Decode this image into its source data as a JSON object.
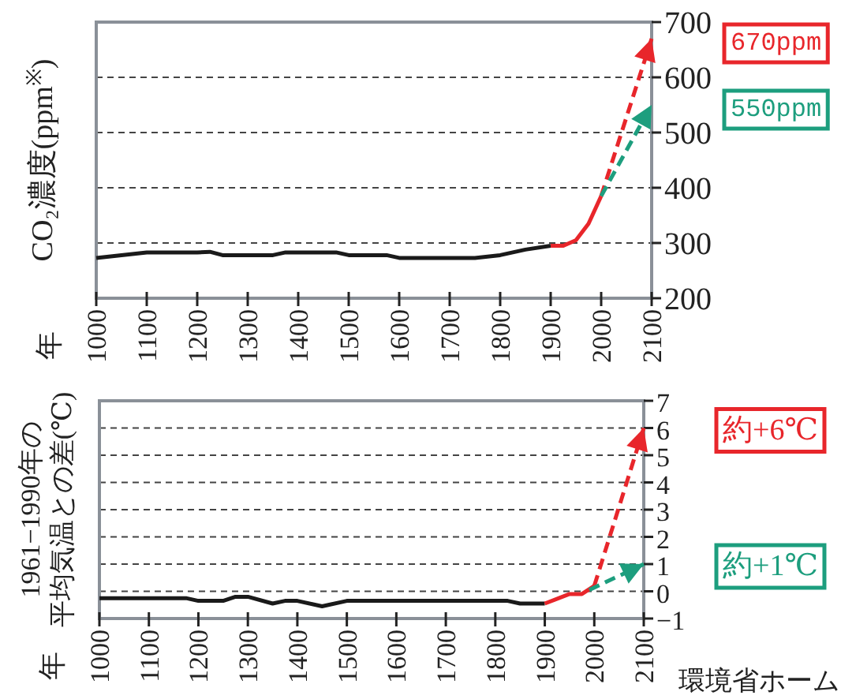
{
  "chart_data": [
    {
      "type": "line",
      "ylabel": "CO₂濃度(ppm$^{※}$)",
      "xlim": [
        1000,
        2100
      ],
      "xticks": [
        1000,
        1100,
        1200,
        1300,
        1400,
        1500,
        1600,
        1700,
        1800,
        1900,
        2000,
        2100
      ],
      "ylim": [
        200,
        700
      ],
      "yticks": [
        200,
        300,
        400,
        500,
        600,
        700
      ],
      "grid": "y",
      "series": [
        {
          "color": "#1a1a1a",
          "x": [
            1000,
            1050,
            1100,
            1150,
            1200,
            1225,
            1250,
            1300,
            1350,
            1375,
            1400,
            1475,
            1500,
            1575,
            1600,
            1700,
            1750,
            1800,
            1850,
            1900
          ],
          "values": [
            273,
            278,
            283,
            283,
            283,
            284,
            278,
            278,
            278,
            283,
            283,
            283,
            278,
            278,
            273,
            273,
            273,
            278,
            288,
            295
          ]
        },
        {
          "color": "#e8262b",
          "x": [
            1900,
            1925,
            1950,
            1975,
            2000
          ],
          "values": [
            295,
            295,
            305,
            335,
            385
          ]
        },
        {
          "color": "#e8262b",
          "line_style": "dashed",
          "x": [
            2000,
            2100
          ],
          "values": [
            385,
            670
          ]
        },
        {
          "color": "#1d9e7e",
          "line_style": "dashed",
          "x": [
            2000,
            2100
          ],
          "values": [
            385,
            550
          ]
        }
      ],
      "annotations": [
        "670ppm",
        "550ppm",
        "年"
      ]
    },
    {
      "type": "line",
      "ylabel": "1961−1990年の平均気温との差(℃)",
      "xlim": [
        1000,
        2100
      ],
      "xticks": [
        1000,
        1100,
        1200,
        1300,
        1400,
        1500,
        1600,
        1700,
        1800,
        1900,
        2000,
        2100
      ],
      "ylim": [
        -1,
        7
      ],
      "yticks": [
        {
          "value": -1,
          "label": "−1"
        },
        0,
        1,
        2,
        3,
        4,
        5,
        6,
        7
      ],
      "grid": "y",
      "series": [
        {
          "color": "#1a1a1a",
          "x": [
            1000,
            1175,
            1200,
            1250,
            1275,
            1300,
            1350,
            1375,
            1400,
            1450,
            1500,
            1825,
            1850,
            1900
          ],
          "values": [
            -0.25,
            -0.25,
            -0.35,
            -0.35,
            -0.2,
            -0.2,
            -0.45,
            -0.35,
            -0.35,
            -0.55,
            -0.35,
            -0.35,
            -0.45,
            -0.45
          ]
        },
        {
          "color": "#e8262b",
          "x": [
            1900,
            1950,
            1975,
            2000
          ],
          "values": [
            -0.45,
            -0.1,
            -0.1,
            0.2
          ]
        },
        {
          "color": "#e8262b",
          "line_style": "dashed",
          "x": [
            2000,
            2100
          ],
          "values": [
            0.2,
            6
          ]
        },
        {
          "color": "#1d9e7e",
          "line_style": "dashed",
          "x": [
            1990,
            2100
          ],
          "values": [
            0.05,
            1
          ]
        }
      ],
      "annotations": [
        "約+6℃",
        "約+1℃",
        "年",
        "環境省ホーム"
      ]
    }
  ]
}
